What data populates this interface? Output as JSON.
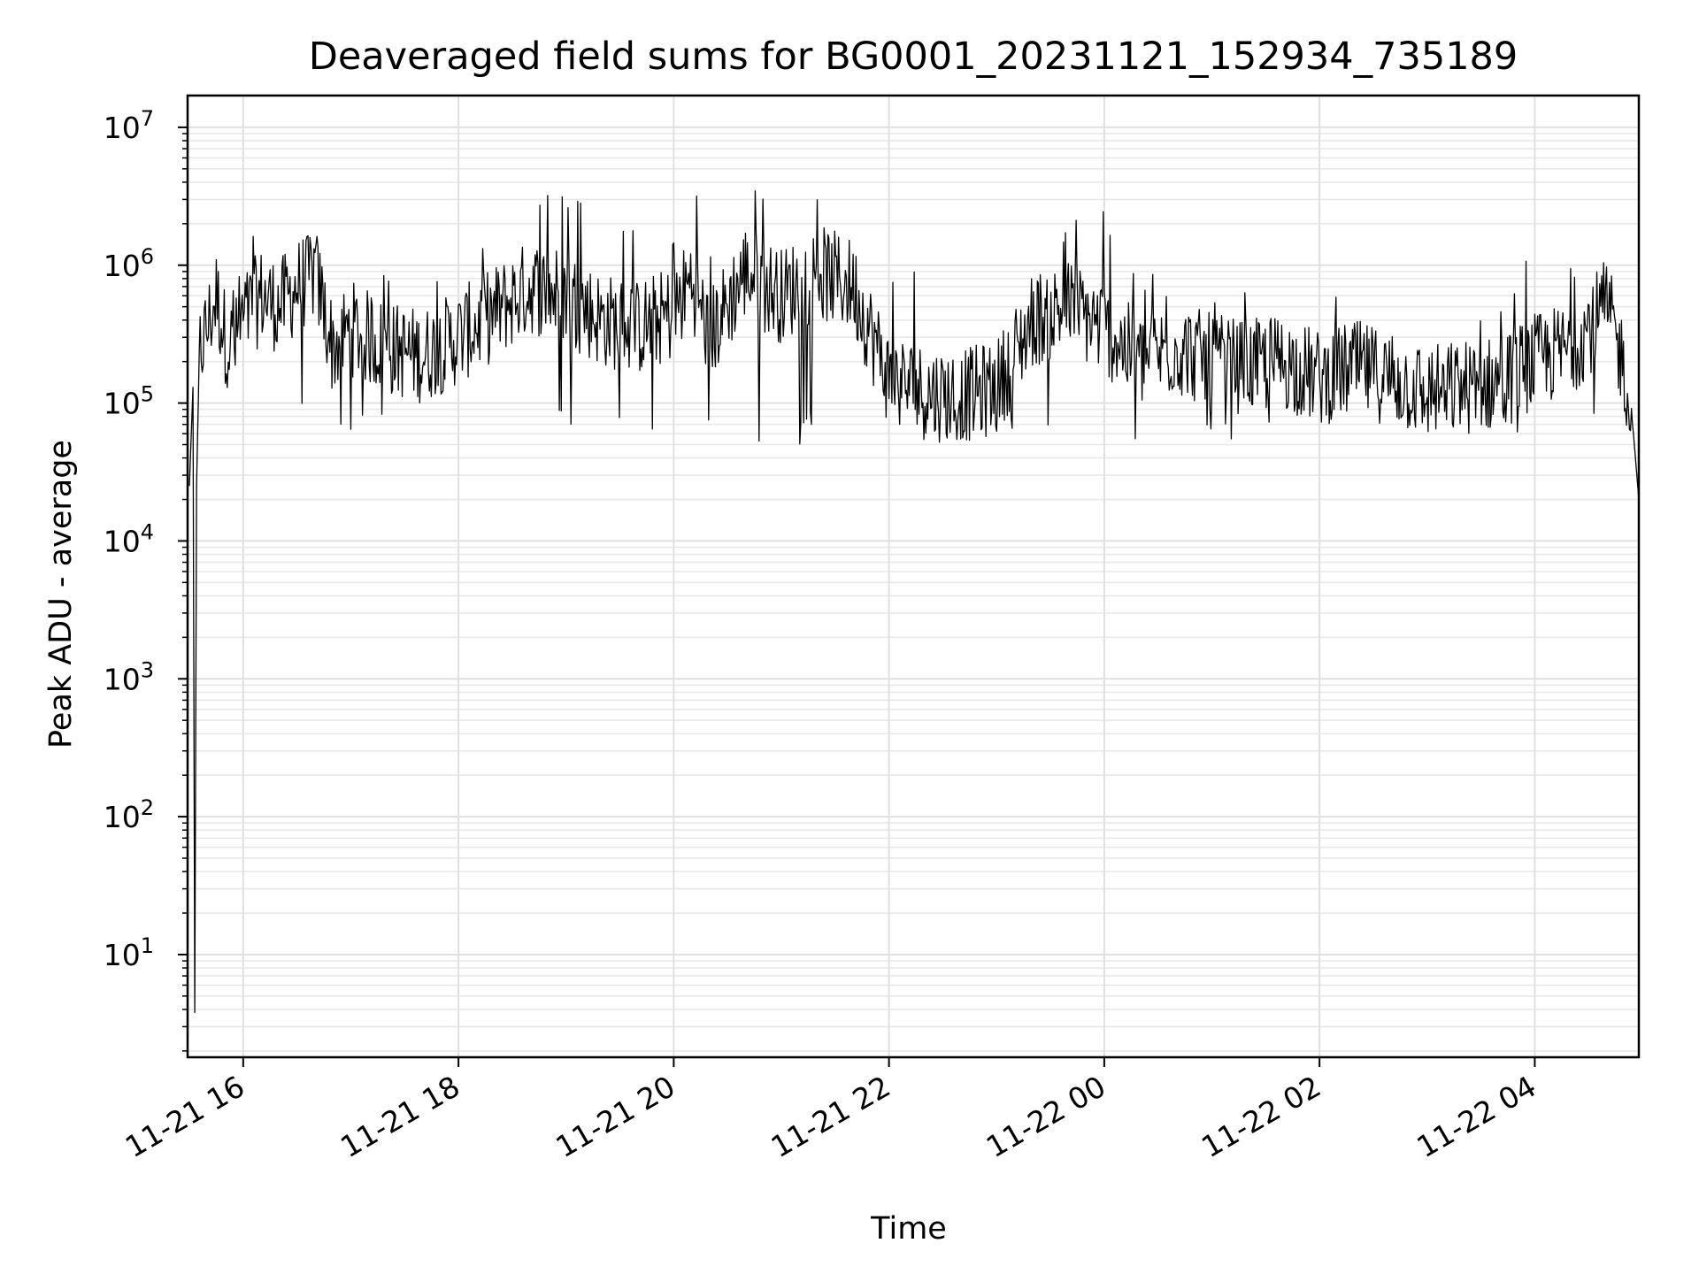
{
  "chart_data": {
    "type": "line",
    "title": "Deaveraged field sums for BG0001_20231121_152934_735189",
    "xlabel": "Time",
    "ylabel": "Peak ADU - average",
    "x_scale": "time",
    "y_scale": "log",
    "xlim": [
      "2023-11-21 15:29",
      "2023-11-22 04:58"
    ],
    "ylim": [
      1.8,
      17000000
    ],
    "grid": true,
    "grid_minor": true,
    "legend": "none",
    "line_color": "#000000",
    "x_ticks": [
      {
        "value": "2023-11-21 16:00",
        "label": "11-21 16"
      },
      {
        "value": "2023-11-21 18:00",
        "label": "11-21 18"
      },
      {
        "value": "2023-11-21 20:00",
        "label": "11-21 20"
      },
      {
        "value": "2023-11-21 22:00",
        "label": "11-21 22"
      },
      {
        "value": "2023-11-22 00:00",
        "label": "11-22 00"
      },
      {
        "value": "2023-11-22 02:00",
        "label": "11-22 02"
      },
      {
        "value": "2023-11-22 04:00",
        "label": "11-22 04"
      }
    ],
    "y_ticks": [
      {
        "value": 10,
        "base": "10",
        "exp": "1"
      },
      {
        "value": 100,
        "base": "10",
        "exp": "2"
      },
      {
        "value": 1000,
        "base": "10",
        "exp": "3"
      },
      {
        "value": 10000,
        "base": "10",
        "exp": "4"
      },
      {
        "value": 100000,
        "base": "10",
        "exp": "5"
      },
      {
        "value": 1000000,
        "base": "10",
        "exp": "6"
      },
      {
        "value": 10000000,
        "base": "10",
        "exp": "7"
      }
    ],
    "series": [
      {
        "x": [
          "2023-11-21 15:30",
          "2023-11-21 15:32",
          "2023-11-21 15:33",
          "2023-11-21 15:34",
          "2023-11-21 15:36",
          "2023-11-21 15:40",
          "2023-11-21 15:45",
          "2023-11-21 15:50",
          "2023-11-21 15:55",
          "2023-11-21 16:00",
          "2023-11-21 16:10",
          "2023-11-21 16:20",
          "2023-11-21 16:30",
          "2023-11-21 16:40",
          "2023-11-21 16:50",
          "2023-11-21 17:00",
          "2023-11-21 17:20",
          "2023-11-21 17:40",
          "2023-11-21 18:00",
          "2023-11-21 18:20",
          "2023-11-21 18:40",
          "2023-11-21 19:00",
          "2023-11-21 19:20",
          "2023-11-21 19:40",
          "2023-11-21 20:00",
          "2023-11-21 20:10",
          "2023-11-21 20:20",
          "2023-11-21 20:40",
          "2023-11-21 21:00",
          "2023-11-21 21:20",
          "2023-11-21 21:40",
          "2023-11-21 22:00",
          "2023-11-21 22:20",
          "2023-11-21 22:40",
          "2023-11-21 23:00",
          "2023-11-21 23:20",
          "2023-11-21 23:40",
          "2023-11-22 00:00",
          "2023-11-22 00:20",
          "2023-11-22 00:40",
          "2023-11-22 01:00",
          "2023-11-22 01:20",
          "2023-11-22 01:40",
          "2023-11-22 02:00",
          "2023-11-22 02:20",
          "2023-11-22 02:40",
          "2023-11-22 03:00",
          "2023-11-22 03:20",
          "2023-11-22 03:40",
          "2023-11-22 04:00",
          "2023-11-22 04:20",
          "2023-11-22 04:40",
          "2023-11-22 04:50",
          "2023-11-22 04:55",
          "2023-11-22 04:58"
        ],
        "y": [
          25000,
          130000,
          3.8,
          25000,
          250000,
          350000,
          600000,
          300000,
          250000,
          400000,
          600000,
          500000,
          700000,
          900000,
          250000,
          350000,
          250000,
          220000,
          300000,
          450000,
          700000,
          600000,
          400000,
          350000,
          450000,
          800000,
          300000,
          900000,
          600000,
          900000,
          700000,
          150000,
          120000,
          110000,
          130000,
          400000,
          500000,
          350000,
          200000,
          250000,
          200000,
          180000,
          200000,
          150000,
          180000,
          150000,
          120000,
          130000,
          140000,
          200000,
          250000,
          500000,
          180000,
          60000,
          20000
        ],
        "upper_envelope": [
          25000,
          130000,
          3.8,
          25000,
          500000,
          1200000,
          1500000,
          900000,
          900000,
          1500000,
          2400000,
          1300000,
          1400000,
          1800000,
          800000,
          1000000,
          900000,
          800000,
          1200000,
          1800000,
          3500000,
          3800000,
          2000000,
          1800000,
          2000000,
          8300000,
          1500000,
          5200000,
          3500000,
          3300000,
          2800000,
          900000,
          900000,
          800000,
          2300000,
          2500000,
          2000000,
          3300000,
          1000000,
          800000,
          700000,
          650000,
          650000,
          1100000,
          700000,
          500000,
          450000,
          550000,
          500000,
          1900000,
          1000000,
          1500000,
          400000,
          60000,
          20000
        ],
        "lower_envelope": [
          25000,
          130000,
          3.8,
          25000,
          100000,
          150000,
          80000,
          40000,
          60000,
          90000,
          70000,
          50000,
          80000,
          90000,
          35000,
          60000,
          60000,
          50000,
          60000,
          70000,
          50000,
          60000,
          60000,
          50000,
          40000,
          38000,
          50000,
          60000,
          40000,
          60000,
          70000,
          60000,
          50000,
          55000,
          50000,
          55000,
          33000,
          55000,
          50000,
          55000,
          55000,
          55000,
          50000,
          50000,
          55000,
          55000,
          55000,
          60000,
          50000,
          60000,
          60000,
          70000,
          70000,
          60000,
          20000
        ]
      }
    ]
  }
}
